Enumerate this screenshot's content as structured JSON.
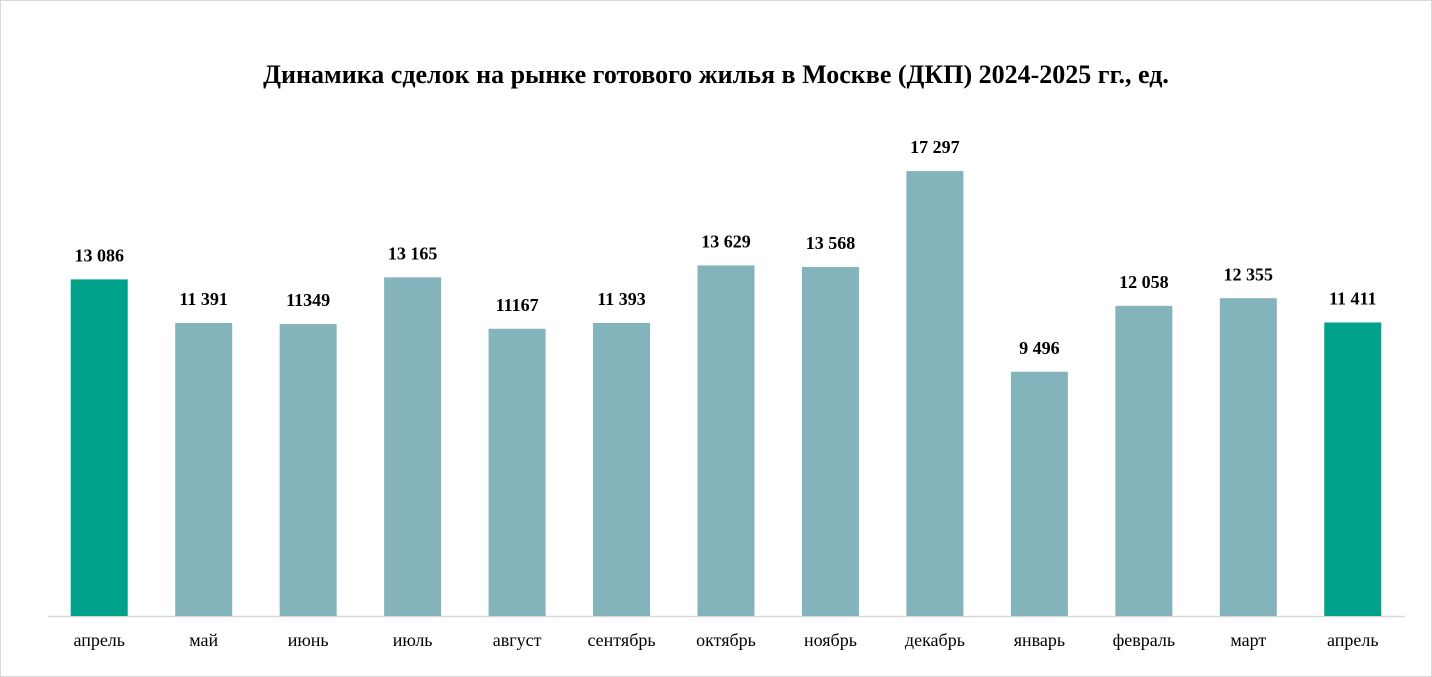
{
  "chart_data": {
    "type": "bar",
    "title": "Динамика сделок на рынке готового жилья в Москве (ДКП) 2024-2025 гг., ед.",
    "categories": [
      "апрель",
      "май",
      "июнь",
      "июль",
      "август",
      "сентябрь",
      "октябрь",
      "ноябрь",
      "декабрь",
      "январь",
      "февраль",
      "март",
      "апрель"
    ],
    "values": [
      13086,
      11391,
      11349,
      13165,
      11167,
      11393,
      13629,
      13568,
      17297,
      9496,
      12058,
      12355,
      11411
    ],
    "value_labels": [
      "13 086",
      "11 391",
      "11349",
      "13 165",
      "11167",
      "11 393",
      "13 629",
      "13 568",
      "17 297",
      "9 496",
      "12 058",
      "12 355",
      "11 411"
    ],
    "colors": [
      "#00a389",
      "#84b4bb",
      "#84b4bb",
      "#84b4bb",
      "#84b4bb",
      "#84b4bb",
      "#84b4bb",
      "#84b4bb",
      "#84b4bb",
      "#84b4bb",
      "#84b4bb",
      "#84b4bb",
      "#00a389"
    ],
    "ylim": [
      0,
      17300
    ]
  }
}
